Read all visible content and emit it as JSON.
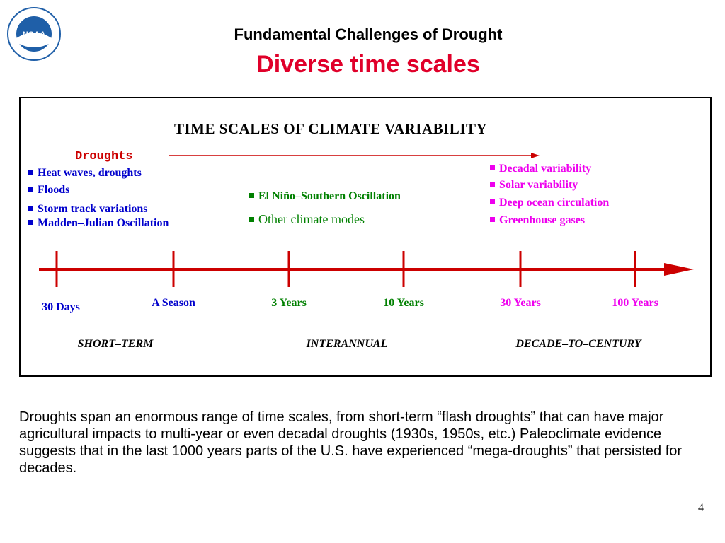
{
  "header": {
    "title": "Fundamental Challenges of Drought",
    "subtitle": "Diverse time scales",
    "logo": "NOAA"
  },
  "diagram": {
    "title": "TIME SCALES OF CLIMATE VARIABILITY",
    "arrow_label": "Droughts",
    "groups": [
      {
        "items": [
          "Heat waves, droughts",
          "Floods",
          "Storm track variations",
          "Madden–Julian Oscillation"
        ]
      },
      {
        "items": [
          "El Niño–Southern Oscillation",
          "Other climate modes"
        ]
      },
      {
        "items": [
          "Decadal variability",
          "Solar variability",
          "Deep ocean circulation",
          "Greenhouse gases"
        ]
      }
    ],
    "timeline": [
      "30 Days",
      "A Season",
      "3 Years",
      "10 Years",
      "30 Years",
      "100 Years"
    ],
    "ranges": [
      "SHORT–TERM",
      "INTERANNUAL",
      "DECADE–TO–CENTURY"
    ]
  },
  "body": "Droughts span an enormous range of time scales, from short-term “flash droughts” that can have major agricultural impacts to multi-year or even decadal droughts (1930s, 1950s, etc.)  Paleoclimate evidence suggests that in the last 1000 years parts of the U.S. have experienced “mega-droughts” that persisted for decades.",
  "page_number": "4"
}
